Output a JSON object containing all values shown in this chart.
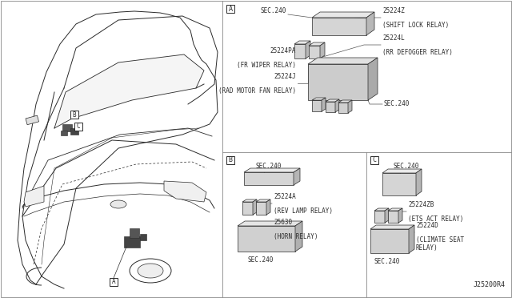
{
  "bg_color": "#ffffff",
  "line_color": "#2a2a2a",
  "fig_width": 6.4,
  "fig_height": 3.72,
  "diagram_code": "J25200R4",
  "font_size_part": 5.5,
  "font_size_sec": 5.5,
  "font_size_label": 6.0,
  "parts": {
    "sec240_A_top": "SEC.240",
    "part_25224Z": "25224Z",
    "part_25224Z_desc": "(SHIFT LOCK RELAY)",
    "part_25224L": "25224L",
    "part_25224L_desc": "(RR DEFOGGER RELAY)",
    "part_25224PA": "25224PA",
    "part_25224PA_desc": "(FR WIPER RELAY)",
    "part_25224J": "25224J",
    "part_25224J_desc": "(RAD MOTOR FAN RELAY)",
    "sec240_A_bot": "SEC.240",
    "sec240_B_top": "SEC.240",
    "part_25224A": "25224A",
    "part_25224A_desc": "(REV LAMP RELAY)",
    "part_25630": "25630",
    "part_25630_desc": "(HORN RELAY)",
    "sec240_B_bot": "SEC.240",
    "sec240_C_top": "SEC.240",
    "part_252247B": "25224ZB",
    "part_252247B_desc": "(ETS ACT RELAY)",
    "part_25224D": "25224D",
    "part_25224D_desc": "(CLIMATE SEAT\nRELAY)",
    "sec240_C_bot": "SEC.240"
  }
}
